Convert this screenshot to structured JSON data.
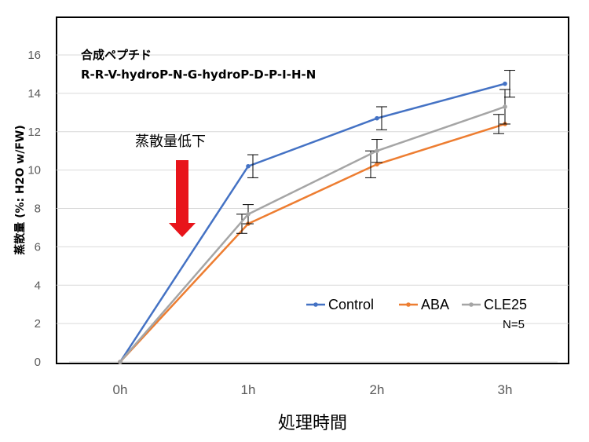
{
  "chart_data": {
    "type": "line",
    "categories": [
      "0h",
      "1h",
      "2h",
      "3h"
    ],
    "ylim": [
      0,
      16
    ],
    "yticks": [
      0,
      2,
      4,
      6,
      8,
      10,
      12,
      14,
      16
    ],
    "ylabel": "蒸散量 (%: H2O w/FW)",
    "xlabel": "処理時間",
    "series": [
      {
        "name": "Control",
        "color": "#4472C4",
        "values": [
          0,
          10.2,
          12.7,
          14.5
        ],
        "errors": [
          0,
          0.6,
          0.6,
          0.7
        ]
      },
      {
        "name": "ABA",
        "color": "#ED7D31",
        "values": [
          0,
          7.2,
          10.3,
          12.4
        ],
        "errors": [
          0,
          0.5,
          0.7,
          0.5
        ]
      },
      {
        "name": "CLE25",
        "color": "#A5A5A5",
        "values": [
          0,
          7.7,
          11.0,
          13.3
        ],
        "errors": [
          0,
          0.5,
          0.6,
          0.9
        ]
      }
    ],
    "annotations": {
      "peptide_title": "合成ペプチド",
      "peptide_sequence": "R-R-V-hydroP-N-G-hydroP-D-P-I-H-N",
      "arrow_label": "蒸散量低下",
      "arrow_color": "#E8141B",
      "n_label": "N=5"
    },
    "legend_position": "bottom-right",
    "grid": true
  }
}
